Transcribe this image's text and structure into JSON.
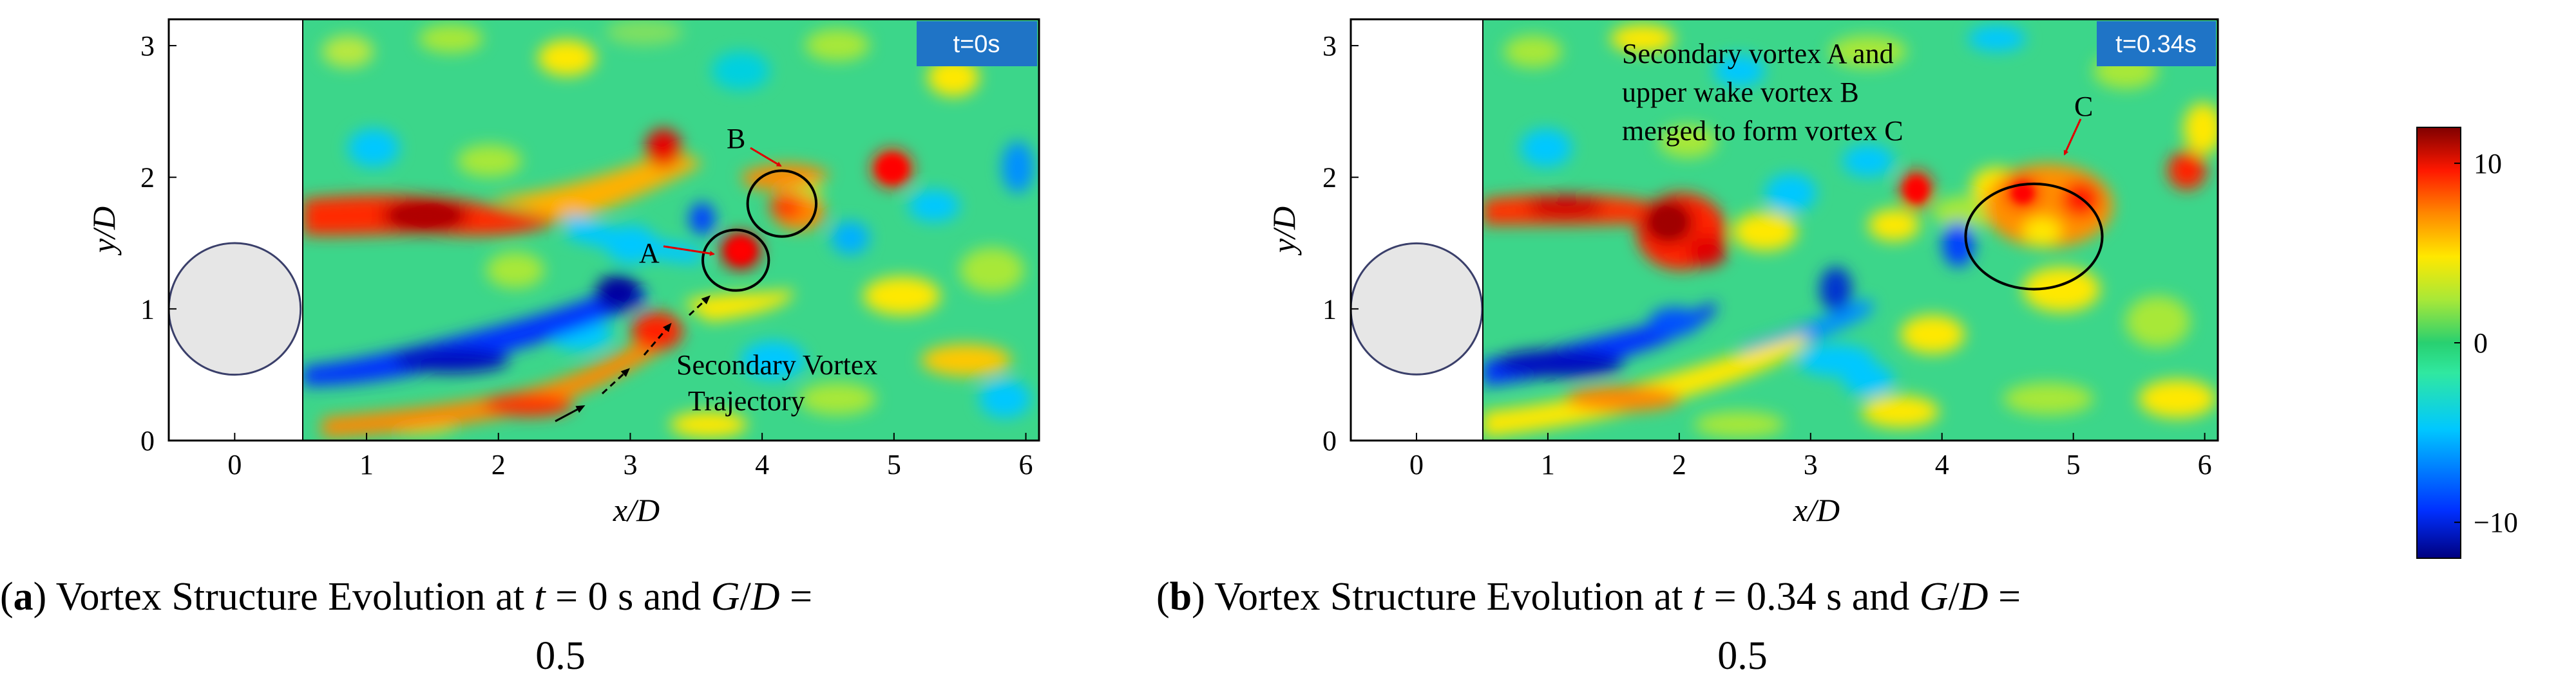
{
  "chart_data": [
    {
      "type": "heatmap",
      "panel": "a",
      "time_label": "t=0s",
      "xlabel": "x/D",
      "ylabel": "y/D",
      "xlim": [
        -0.5,
        6.1
      ],
      "ylim": [
        0,
        3.2
      ],
      "xticks": [
        "0",
        "1",
        "2",
        "3",
        "4",
        "5",
        "6"
      ],
      "yticks": [
        "0",
        "1",
        "2",
        "3"
      ],
      "cylinder": {
        "cx": 0,
        "cy": 1.0,
        "r": 0.5
      },
      "annotations": {
        "A": "A",
        "B": "B",
        "trajectory_line1": "Secondary Vortex",
        "trajectory_line2": "Trajectory"
      },
      "vortices": [
        {
          "x": 3.8,
          "y": 1.37,
          "rx": 0.25,
          "ry": 0.23,
          "label": "A"
        },
        {
          "x": 4.15,
          "y": 1.8,
          "rx": 0.26,
          "ry": 0.25,
          "label": "B"
        }
      ],
      "caption": {
        "letter": "a",
        "line1": " Vortex Structure Evolution at ",
        "t": "t",
        "mid": " = 0 s and ",
        "g": "G",
        "slash": "/",
        "d": "D",
        "eq": " =",
        "line2": "0.5"
      }
    },
    {
      "type": "heatmap",
      "panel": "b",
      "time_label": "t=0.34s",
      "xlabel": "x/D",
      "ylabel": "y/D",
      "xlim": [
        -0.5,
        6.1
      ],
      "ylim": [
        0,
        3.2
      ],
      "xticks": [
        "0",
        "1",
        "2",
        "3",
        "4",
        "5",
        "6"
      ],
      "yticks": [
        "0",
        "1",
        "2",
        "3"
      ],
      "cylinder": {
        "cx": 0,
        "cy": 1.0,
        "r": 0.5
      },
      "annotations": {
        "C": "C",
        "merge_line1": "Secondary vortex A and",
        "merge_line2": "upper wake vortex B",
        "merge_line3": "merged to form vortex C"
      },
      "vortices": [
        {
          "x": 4.7,
          "y": 1.55,
          "rx": 0.52,
          "ry": 0.4,
          "label": "C"
        }
      ],
      "caption": {
        "letter": "b",
        "line1": " Vortex Structure Evolution at ",
        "t": "t",
        "mid": " = 0.34 s and ",
        "g": "G",
        "slash": "/",
        "d": "D",
        "eq": " =",
        "line2": "0.5"
      }
    }
  ],
  "colorbar": {
    "ticks": [
      "10",
      "0",
      "−10"
    ],
    "range": [
      -12,
      12
    ],
    "tick_values": [
      10,
      0,
      -10
    ],
    "colors": [
      "#00007f",
      "#0030ff",
      "#00c8ff",
      "#30e8a0",
      "#28d070",
      "#a8e838",
      "#ffe800",
      "#ff8800",
      "#ff1800",
      "#7f0000"
    ]
  }
}
